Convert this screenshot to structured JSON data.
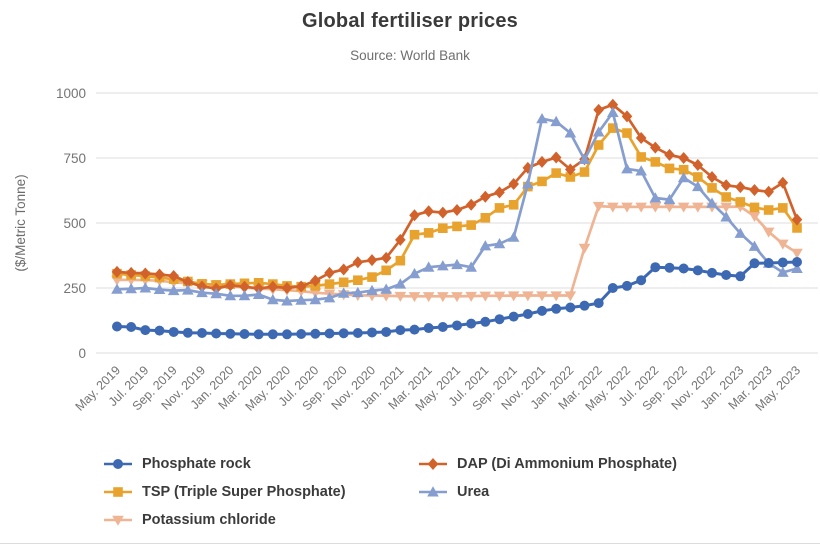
{
  "page": {
    "title": "Global fertiliser prices",
    "subtitle": "Source: World Bank"
  },
  "chart_data": {
    "type": "line",
    "title": "Global fertiliser prices",
    "subtitle": "Source: World Bank",
    "xlabel": "",
    "ylabel": "($/Metric Tonne)",
    "ylim": [
      0,
      1000
    ],
    "yticks": [
      0,
      250,
      500,
      750,
      1000
    ],
    "grid": true,
    "legend_position": "bottom",
    "x_tick_every": 2,
    "axis_text_color": "#747474",
    "grid_color": "#e3e3e3",
    "categories": [
      "May. 2019",
      "Jun. 2019",
      "Jul. 2019",
      "Aug. 2019",
      "Sep. 2019",
      "Oct. 2019",
      "Nov. 2019",
      "Dec. 2019",
      "Jan. 2020",
      "Feb. 2020",
      "Mar. 2020",
      "Apr. 2020",
      "May. 2020",
      "Jun. 2020",
      "Jul. 2020",
      "Aug. 2020",
      "Sep. 2020",
      "Oct. 2020",
      "Nov. 2020",
      "Dec. 2020",
      "Jan. 2021",
      "Feb. 2021",
      "Mar. 2021",
      "Apr. 2021",
      "May. 2021",
      "Jun. 2021",
      "Jul. 2021",
      "Aug. 2021",
      "Sep. 2021",
      "Oct. 2021",
      "Nov. 2021",
      "Dec. 2021",
      "Jan. 2022",
      "Feb. 2022",
      "Mar. 2022",
      "Apr. 2022",
      "May. 2022",
      "Jun. 2022",
      "Jul. 2022",
      "Aug. 2022",
      "Sep. 2022",
      "Oct. 2022",
      "Nov. 2022",
      "Dec. 2022",
      "Jan. 2023",
      "Feb. 2023",
      "Mar. 2023",
      "Apr. 2023",
      "May. 2023"
    ],
    "series": [
      {
        "name": "Phosphate rock",
        "marker": "circle",
        "color": "#3D68B2",
        "values": [
          102,
          100,
          88,
          86,
          81,
          78,
          77,
          75,
          74,
          73,
          72,
          72,
          72,
          73,
          74,
          75,
          76,
          77,
          79,
          81,
          88,
          90,
          96,
          100,
          106,
          113,
          120,
          130,
          140,
          150,
          162,
          170,
          175,
          182,
          192,
          250,
          258,
          280,
          330,
          328,
          325,
          318,
          308,
          300,
          295,
          345,
          346,
          348,
          350
        ]
      },
      {
        "name": "TSP (Triple Super Phosphate)",
        "marker": "square",
        "color": "#E8A32E",
        "values": [
          305,
          300,
          296,
          290,
          284,
          275,
          266,
          262,
          265,
          268,
          270,
          265,
          258,
          255,
          258,
          265,
          272,
          280,
          292,
          318,
          355,
          455,
          462,
          480,
          487,
          492,
          520,
          558,
          570,
          640,
          660,
          692,
          677,
          696,
          800,
          865,
          846,
          754,
          735,
          710,
          705,
          677,
          635,
          600,
          581,
          560,
          550,
          558,
          481
        ]
      },
      {
        "name": "Potassium chloride",
        "marker": "triangle-down",
        "color": "#EFB493",
        "values": [
          281,
          281,
          280,
          278,
          272,
          268,
          265,
          262,
          258,
          252,
          248,
          245,
          242,
          238,
          232,
          228,
          225,
          222,
          221,
          220,
          219,
          218,
          218,
          218,
          218,
          219,
          220,
          220,
          221,
          221,
          221,
          221,
          221,
          404,
          565,
          562,
          562,
          562,
          562,
          562,
          562,
          562,
          562,
          562,
          563,
          526,
          466,
          420,
          385
        ]
      },
      {
        "name": "DAP (Di Ammonium Phosphate)",
        "marker": "diamond",
        "color": "#D2622C",
        "values": [
          312,
          308,
          306,
          302,
          296,
          273,
          256,
          248,
          260,
          255,
          248,
          255,
          250,
          256,
          278,
          308,
          321,
          349,
          357,
          366,
          435,
          530,
          545,
          540,
          550,
          570,
          601,
          618,
          650,
          712,
          735,
          752,
          706,
          745,
          935,
          955,
          910,
          827,
          790,
          762,
          750,
          723,
          677,
          645,
          638,
          627,
          620,
          655,
          513
        ]
      },
      {
        "name": "Urea",
        "marker": "triangle-up",
        "color": "#869ECF",
        "values": [
          245,
          247,
          250,
          244,
          240,
          242,
          232,
          228,
          220,
          220,
          225,
          205,
          200,
          203,
          205,
          212,
          230,
          232,
          240,
          245,
          265,
          305,
          330,
          335,
          340,
          330,
          412,
          420,
          445,
          650,
          901,
          890,
          846,
          744,
          850,
          925,
          708,
          700,
          596,
          590,
          674,
          640,
          576,
          523,
          460,
          410,
          345,
          310,
          325
        ]
      }
    ],
    "draw_order": [
      2,
      1,
      3,
      4,
      0
    ],
    "legend_columns": [
      [
        0,
        1,
        2
      ],
      [
        3,
        4
      ]
    ]
  }
}
